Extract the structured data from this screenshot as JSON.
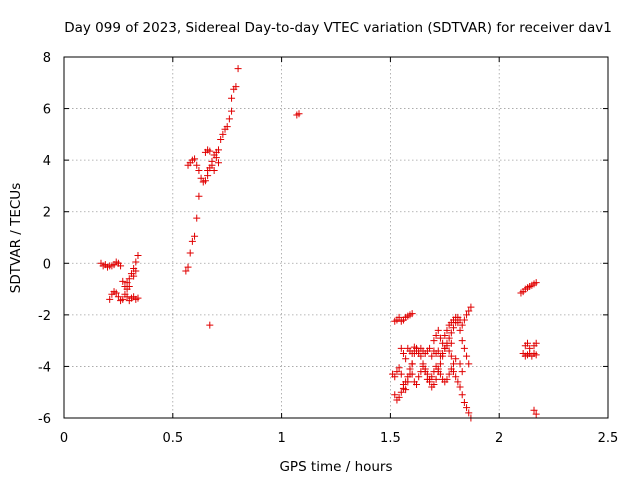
{
  "chart_data": {
    "type": "scatter",
    "title": "Day 099 of 2023, Sidereal Day-to-day VTEC variation (SDTVAR) for receiver dav1",
    "xlabel": "GPS time / hours",
    "ylabel": "SDTVAR / TECUs",
    "xlim": [
      0,
      2.5
    ],
    "ylim": [
      -6,
      8
    ],
    "xticks": [
      0,
      0.5,
      1,
      1.5,
      2,
      2.5
    ],
    "xtick_labels": [
      "0",
      "0.5",
      "1",
      "1.5",
      "2",
      "2.5"
    ],
    "yticks": [
      -6,
      -4,
      -2,
      0,
      2,
      4,
      6,
      8
    ],
    "ytick_labels": [
      "-6",
      "-4",
      "-2",
      "0",
      "2",
      "4",
      "6",
      "8"
    ],
    "grid": true,
    "marker": "+",
    "color": "#e00000",
    "series": [
      {
        "name": "SDTVAR",
        "points": [
          [
            0.17,
            0.0
          ],
          [
            0.18,
            -0.1
          ],
          [
            0.19,
            -0.05
          ],
          [
            0.2,
            -0.15
          ],
          [
            0.21,
            -0.1
          ],
          [
            0.22,
            -0.1
          ],
          [
            0.23,
            -0.05
          ],
          [
            0.24,
            0.05
          ],
          [
            0.25,
            0.0
          ],
          [
            0.26,
            -0.1
          ],
          [
            0.21,
            -1.4
          ],
          [
            0.22,
            -1.2
          ],
          [
            0.23,
            -1.1
          ],
          [
            0.24,
            -1.15
          ],
          [
            0.25,
            -1.3
          ],
          [
            0.26,
            -1.45
          ],
          [
            0.27,
            -1.4
          ],
          [
            0.28,
            -1.2
          ],
          [
            0.29,
            -1.3
          ],
          [
            0.3,
            -1.45
          ],
          [
            0.31,
            -1.35
          ],
          [
            0.32,
            -1.3
          ],
          [
            0.33,
            -1.4
          ],
          [
            0.34,
            -1.35
          ],
          [
            0.27,
            -0.7
          ],
          [
            0.28,
            -0.9
          ],
          [
            0.29,
            -1.0
          ],
          [
            0.29,
            -0.75
          ],
          [
            0.3,
            -0.6
          ],
          [
            0.31,
            -0.4
          ],
          [
            0.32,
            -0.2
          ],
          [
            0.33,
            0.05
          ],
          [
            0.34,
            0.3
          ],
          [
            0.33,
            -0.3
          ],
          [
            0.32,
            -0.5
          ],
          [
            0.3,
            -0.9
          ],
          [
            0.56,
            -0.3
          ],
          [
            0.57,
            -0.15
          ],
          [
            0.58,
            0.4
          ],
          [
            0.59,
            0.85
          ],
          [
            0.6,
            1.05
          ],
          [
            0.61,
            1.75
          ],
          [
            0.62,
            2.6
          ],
          [
            0.57,
            3.8
          ],
          [
            0.58,
            3.9
          ],
          [
            0.59,
            4.0
          ],
          [
            0.6,
            4.05
          ],
          [
            0.61,
            3.8
          ],
          [
            0.62,
            3.6
          ],
          [
            0.63,
            3.3
          ],
          [
            0.64,
            3.15
          ],
          [
            0.65,
            3.2
          ],
          [
            0.66,
            3.4
          ],
          [
            0.67,
            3.7
          ],
          [
            0.68,
            3.95
          ],
          [
            0.69,
            4.2
          ],
          [
            0.7,
            4.1
          ],
          [
            0.71,
            3.9
          ],
          [
            0.69,
            3.6
          ],
          [
            0.68,
            3.8
          ],
          [
            0.66,
            3.6
          ],
          [
            0.65,
            4.3
          ],
          [
            0.66,
            4.4
          ],
          [
            0.67,
            4.35
          ],
          [
            0.7,
            4.3
          ],
          [
            0.71,
            4.4
          ],
          [
            0.72,
            4.8
          ],
          [
            0.73,
            5.0
          ],
          [
            0.74,
            5.2
          ],
          [
            0.75,
            5.3
          ],
          [
            0.76,
            5.6
          ],
          [
            0.77,
            5.9
          ],
          [
            0.77,
            6.4
          ],
          [
            0.78,
            6.75
          ],
          [
            0.79,
            6.85
          ],
          [
            0.8,
            7.55
          ],
          [
            0.67,
            -2.4
          ],
          [
            1.07,
            5.75
          ],
          [
            1.08,
            5.8
          ],
          [
            1.51,
            -4.3
          ],
          [
            1.52,
            -4.4
          ],
          [
            1.53,
            -4.2
          ],
          [
            1.54,
            -4.05
          ],
          [
            1.55,
            -4.3
          ],
          [
            1.56,
            -4.7
          ],
          [
            1.57,
            -4.9
          ],
          [
            1.58,
            -4.6
          ],
          [
            1.59,
            -4.3
          ],
          [
            1.6,
            -3.9
          ],
          [
            1.61,
            -3.5
          ],
          [
            1.62,
            -3.3
          ],
          [
            1.63,
            -3.4
          ],
          [
            1.64,
            -3.6
          ],
          [
            1.65,
            -3.9
          ],
          [
            1.66,
            -4.2
          ],
          [
            1.67,
            -4.5
          ],
          [
            1.68,
            -4.6
          ],
          [
            1.69,
            -4.8
          ],
          [
            1.7,
            -4.7
          ],
          [
            1.71,
            -4.5
          ],
          [
            1.72,
            -4.2
          ],
          [
            1.73,
            -3.9
          ],
          [
            1.74,
            -3.6
          ],
          [
            1.75,
            -3.3
          ],
          [
            1.76,
            -3.1
          ],
          [
            1.77,
            -2.9
          ],
          [
            1.78,
            -2.7
          ],
          [
            1.79,
            -2.5
          ],
          [
            1.8,
            -2.3
          ],
          [
            1.81,
            -2.1
          ],
          [
            1.82,
            -2.2
          ],
          [
            1.83,
            -2.4
          ],
          [
            1.84,
            -2.2
          ],
          [
            1.85,
            -2.0
          ],
          [
            1.86,
            -1.85
          ],
          [
            1.87,
            -1.7
          ],
          [
            1.52,
            -2.25
          ],
          [
            1.53,
            -2.2
          ],
          [
            1.54,
            -2.1
          ],
          [
            1.55,
            -2.25
          ],
          [
            1.56,
            -2.2
          ],
          [
            1.57,
            -2.1
          ],
          [
            1.58,
            -2.05
          ],
          [
            1.59,
            -2.0
          ],
          [
            1.6,
            -1.95
          ],
          [
            1.52,
            -5.1
          ],
          [
            1.53,
            -5.3
          ],
          [
            1.54,
            -5.2
          ],
          [
            1.55,
            -5.0
          ],
          [
            1.56,
            -4.85
          ],
          [
            1.57,
            -4.6
          ],
          [
            1.58,
            -4.4
          ],
          [
            1.59,
            -4.1
          ],
          [
            1.6,
            -3.9
          ],
          [
            1.55,
            -3.3
          ],
          [
            1.56,
            -3.5
          ],
          [
            1.57,
            -3.7
          ],
          [
            1.58,
            -3.3
          ],
          [
            1.59,
            -3.4
          ],
          [
            1.6,
            -3.5
          ],
          [
            1.61,
            -3.25
          ],
          [
            1.62,
            -3.4
          ],
          [
            1.63,
            -3.5
          ],
          [
            1.64,
            -3.3
          ],
          [
            1.65,
            -3.4
          ],
          [
            1.66,
            -3.5
          ],
          [
            1.67,
            -3.4
          ],
          [
            1.68,
            -3.3
          ],
          [
            1.69,
            -3.6
          ],
          [
            1.7,
            -3.4
          ],
          [
            1.71,
            -3.5
          ],
          [
            1.72,
            -3.4
          ],
          [
            1.73,
            -3.6
          ],
          [
            1.74,
            -3.5
          ],
          [
            1.75,
            -3.3
          ],
          [
            1.76,
            -3.2
          ],
          [
            1.77,
            -3.4
          ],
          [
            1.78,
            -3.6
          ],
          [
            1.6,
            -4.3
          ],
          [
            1.61,
            -4.6
          ],
          [
            1.62,
            -4.7
          ],
          [
            1.63,
            -4.4
          ],
          [
            1.64,
            -4.2
          ],
          [
            1.65,
            -4.0
          ],
          [
            1.66,
            -4.1
          ],
          [
            1.67,
            -4.3
          ],
          [
            1.68,
            -4.5
          ],
          [
            1.69,
            -4.4
          ],
          [
            1.7,
            -4.2
          ],
          [
            1.71,
            -4.0
          ],
          [
            1.72,
            -4.1
          ],
          [
            1.73,
            -4.3
          ],
          [
            1.74,
            -4.5
          ],
          [
            1.75,
            -4.6
          ],
          [
            1.76,
            -4.5
          ],
          [
            1.77,
            -4.3
          ],
          [
            1.78,
            -4.1
          ],
          [
            1.79,
            -4.2
          ],
          [
            1.8,
            -4.4
          ],
          [
            1.81,
            -4.6
          ],
          [
            1.82,
            -4.8
          ],
          [
            1.83,
            -5.1
          ],
          [
            1.84,
            -5.4
          ],
          [
            1.85,
            -5.6
          ],
          [
            1.86,
            -5.8
          ],
          [
            1.87,
            -6.0
          ],
          [
            1.7,
            -3.0
          ],
          [
            1.71,
            -2.8
          ],
          [
            1.72,
            -2.6
          ],
          [
            1.73,
            -2.9
          ],
          [
            1.74,
            -3.1
          ],
          [
            1.75,
            -2.8
          ],
          [
            1.76,
            -2.6
          ],
          [
            1.77,
            -2.4
          ],
          [
            1.78,
            -2.3
          ],
          [
            1.79,
            -2.2
          ],
          [
            1.8,
            -2.1
          ],
          [
            1.81,
            -2.3
          ],
          [
            1.82,
            -2.6
          ],
          [
            1.83,
            -3.0
          ],
          [
            1.84,
            -3.3
          ],
          [
            1.85,
            -3.6
          ],
          [
            1.86,
            -3.9
          ],
          [
            1.83,
            -4.2
          ],
          [
            1.82,
            -3.9
          ],
          [
            1.8,
            -3.7
          ],
          [
            1.79,
            -3.9
          ],
          [
            1.78,
            -3.1
          ],
          [
            2.1,
            -1.15
          ],
          [
            2.11,
            -1.1
          ],
          [
            2.12,
            -1.0
          ],
          [
            2.13,
            -0.95
          ],
          [
            2.14,
            -0.9
          ],
          [
            2.15,
            -0.85
          ],
          [
            2.16,
            -0.8
          ],
          [
            2.17,
            -0.75
          ],
          [
            2.11,
            -3.5
          ],
          [
            2.12,
            -3.6
          ],
          [
            2.13,
            -3.55
          ],
          [
            2.14,
            -3.5
          ],
          [
            2.15,
            -3.6
          ],
          [
            2.16,
            -3.5
          ],
          [
            2.17,
            -3.55
          ],
          [
            2.12,
            -3.2
          ],
          [
            2.13,
            -3.1
          ],
          [
            2.14,
            -3.3
          ],
          [
            2.16,
            -3.2
          ],
          [
            2.17,
            -3.1
          ],
          [
            2.16,
            -5.7
          ],
          [
            2.17,
            -5.85
          ]
        ]
      }
    ]
  }
}
